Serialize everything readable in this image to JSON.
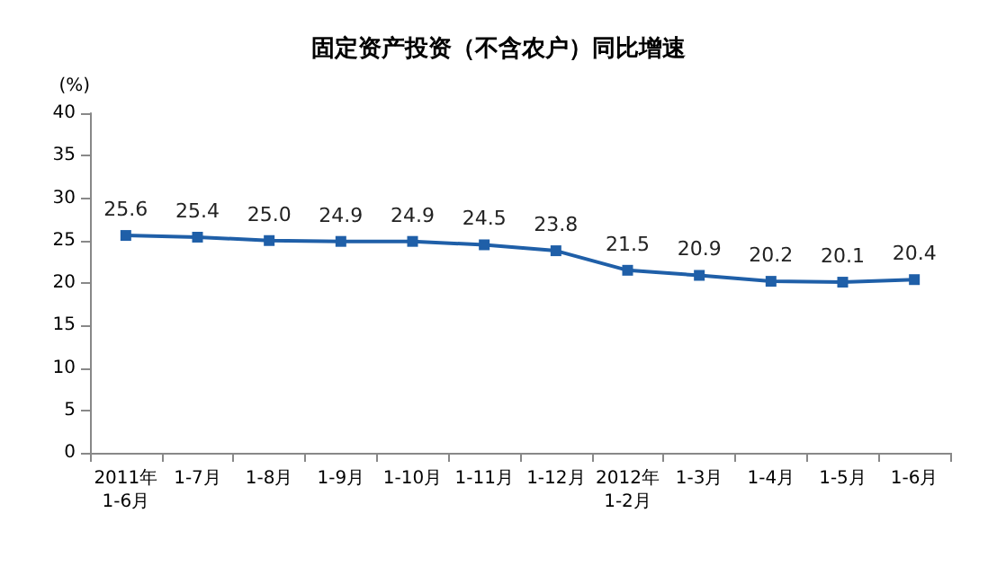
{
  "chart_data": {
    "type": "line",
    "title": "固定资产投资（不含农户）同比增速",
    "ylabel": "(%)",
    "categories": [
      "2011年\n1-6月",
      "1-7月",
      "1-8月",
      "1-9月",
      "1-10月",
      "1-11月",
      "1-12月",
      "2012年\n1-2月",
      "1-3月",
      "1-4月",
      "1-5月",
      "1-6月"
    ],
    "series": [
      {
        "color": "#1f5fa8",
        "values": [
          25.6,
          25.4,
          25.0,
          24.9,
          24.9,
          24.5,
          23.8,
          21.5,
          20.9,
          20.2,
          20.1,
          20.4
        ],
        "value_labels": [
          "25.6",
          "25.4",
          "25.0",
          "24.9",
          "24.9",
          "24.5",
          "23.8",
          "21.5",
          "20.9",
          "20.2",
          "20.1",
          "20.4"
        ]
      }
    ],
    "ylim": [
      0,
      40
    ],
    "yticks": [
      0,
      5,
      10,
      15,
      20,
      25,
      30,
      35,
      40
    ],
    "grid": false,
    "marker": "square",
    "line_style": "solid"
  }
}
